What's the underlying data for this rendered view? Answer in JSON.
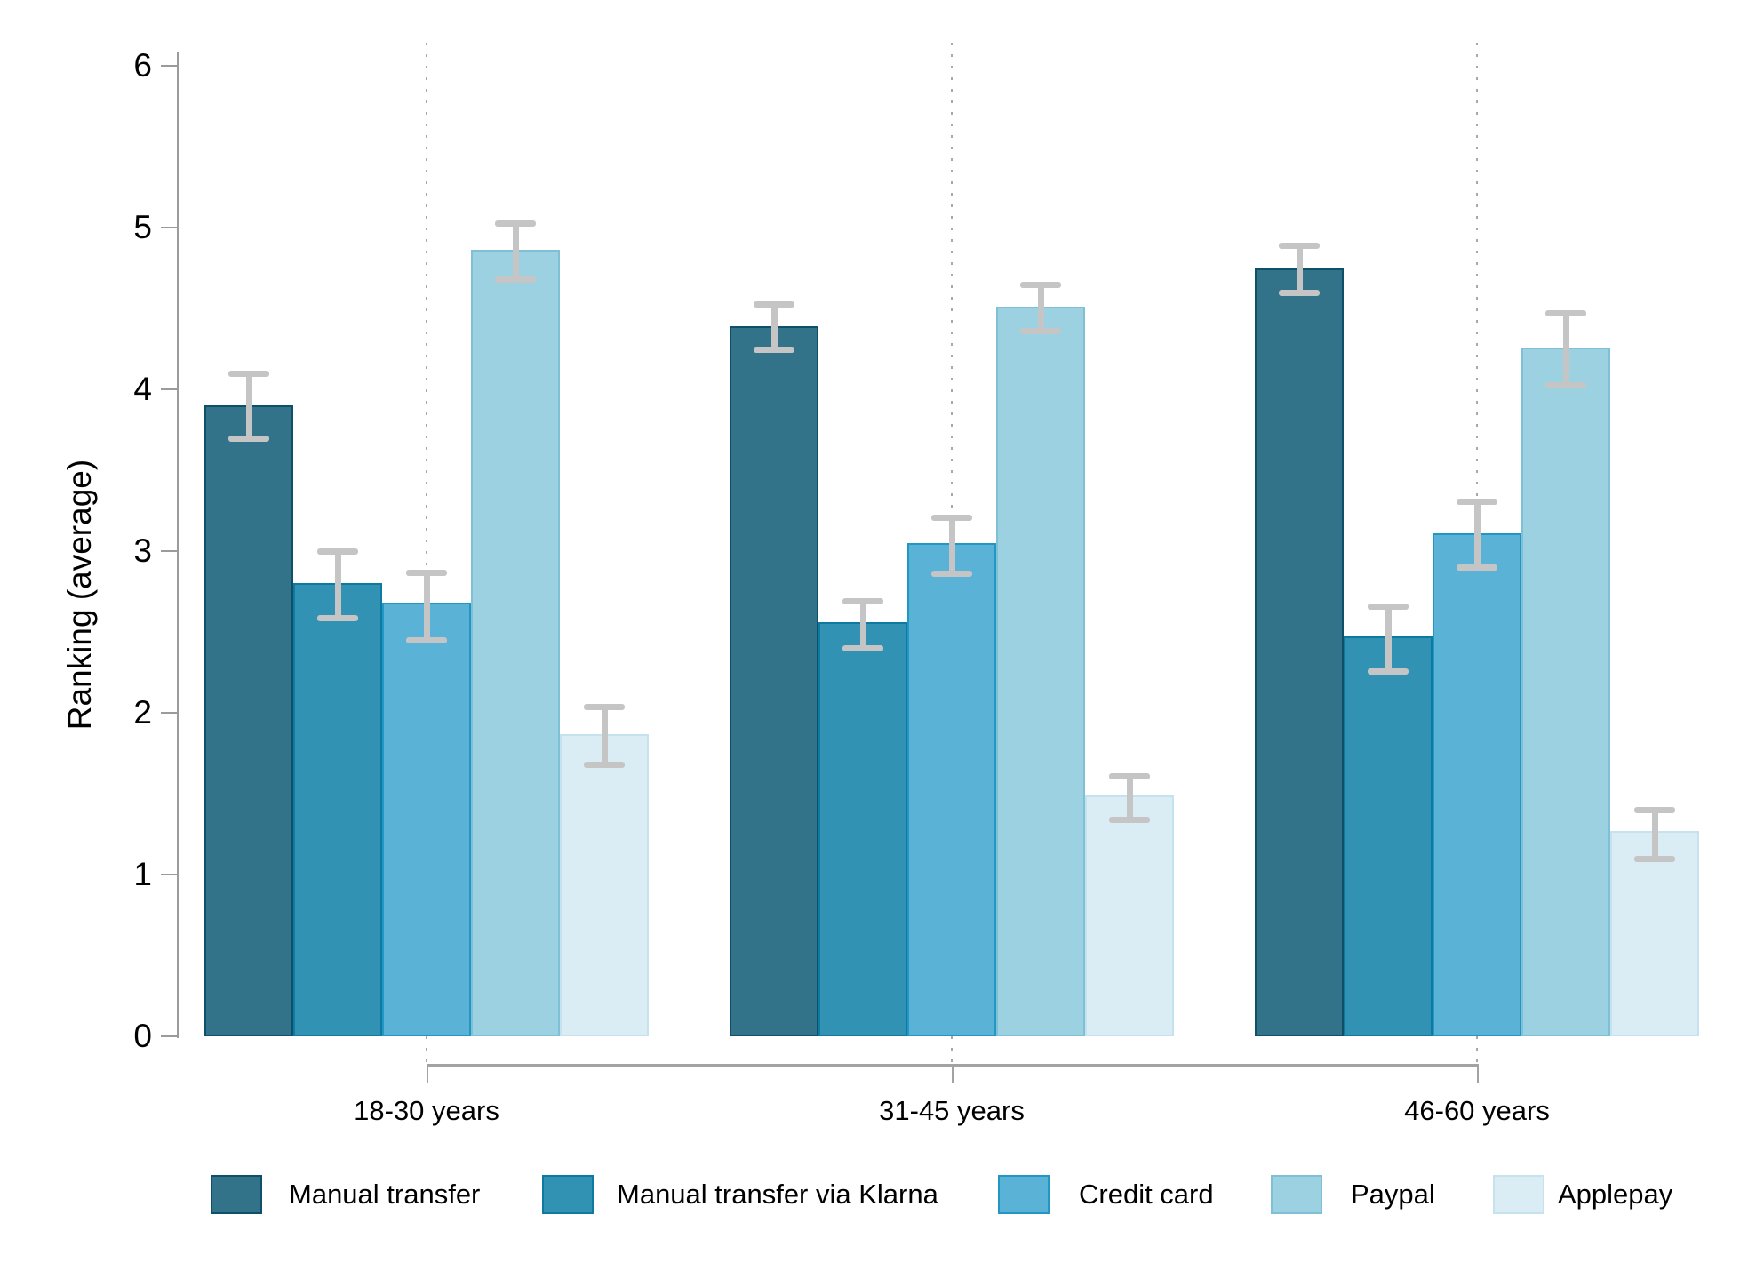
{
  "chart_data": {
    "type": "bar",
    "title": "",
    "xlabel": "",
    "ylabel": "Ranking (average)",
    "ylim": [
      0,
      6
    ],
    "yticks": [
      0,
      1,
      2,
      3,
      4,
      5,
      6
    ],
    "grid": "vertical dotted line at each category center",
    "legend_position": "bottom",
    "error_bars": true,
    "categories": [
      "18-30 years",
      "31-45 years",
      "46-60 years"
    ],
    "series": [
      {
        "name": "Manual transfer",
        "fill": "#337389",
        "border": "#0e4f6a",
        "values": [
          3.9,
          4.39,
          4.75
        ],
        "ci_low": [
          3.7,
          4.25,
          4.6
        ],
        "ci_high": [
          4.1,
          4.53,
          4.89
        ]
      },
      {
        "name": "Manual transfer via Klarna",
        "fill": "#3292b3",
        "border": "#0d7aa1",
        "values": [
          2.8,
          2.56,
          2.47
        ],
        "ci_low": [
          2.59,
          2.4,
          2.26
        ],
        "ci_high": [
          3.0,
          2.69,
          2.66
        ]
      },
      {
        "name": "Credit card",
        "fill": "#5ab3d7",
        "border": "#2397c4",
        "values": [
          2.68,
          3.05,
          3.11
        ],
        "ci_low": [
          2.45,
          2.86,
          2.9
        ],
        "ci_high": [
          2.87,
          3.21,
          3.31
        ]
      },
      {
        "name": "Paypal",
        "fill": "#9cd1e2",
        "border": "#7fc0d6",
        "values": [
          4.86,
          4.51,
          4.26
        ],
        "ci_low": [
          4.68,
          4.36,
          4.03
        ],
        "ci_high": [
          5.03,
          4.65,
          4.47
        ]
      },
      {
        "name": "Applepay",
        "fill": "#daecf4",
        "border": "#c6e2ef",
        "values": [
          1.87,
          1.49,
          1.27
        ],
        "ci_low": [
          1.68,
          1.34,
          1.1
        ],
        "ci_high": [
          2.04,
          1.61,
          1.4
        ]
      }
    ],
    "error_bar_color": "#c5c5c5",
    "axis_color": "#9b9b9b"
  }
}
